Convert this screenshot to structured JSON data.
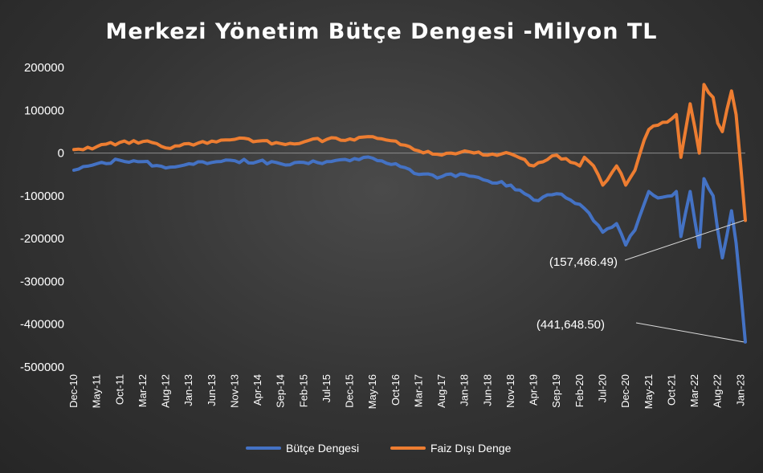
{
  "chart_data": {
    "type": "line",
    "title": "Merkezi Yönetim Bütçe Dengesi -Milyon TL",
    "xlabel": "",
    "ylabel": "",
    "ylim": [
      -500000,
      200000
    ],
    "yticks": [
      200000,
      100000,
      0,
      -100000,
      -200000,
      -300000,
      -400000,
      -500000
    ],
    "ytick_labels": [
      "200000",
      "100000",
      "0",
      "-100000",
      "-200000",
      "-300000",
      "-400000",
      "-500000"
    ],
    "x_start": "Dec-10",
    "x_end": "Feb-23",
    "xtick_labels": [
      "Dec-10",
      "May-11",
      "Oct-11",
      "Mar-12",
      "Aug-12",
      "Jan-13",
      "Jun-13",
      "Nov-13",
      "Apr-14",
      "Sep-14",
      "Feb-15",
      "Jul-15",
      "Dec-15",
      "May-16",
      "Oct-16",
      "Mar-17",
      "Aug-17",
      "Jan-18",
      "Jun-18",
      "Nov-18",
      "Apr-19",
      "Sep-19",
      "Feb-20",
      "Jul-20",
      "Dec-20",
      "May-21",
      "Oct-21",
      "Mar-22",
      "Aug-22",
      "Jan-23"
    ],
    "legend_position": "bottom",
    "grid": false,
    "series": [
      {
        "name": "Bütçe Dengesi",
        "color": "#4472c4",
        "keypoints": [
          [
            "Dec-10",
            -40000
          ],
          [
            "May-11",
            -25000
          ],
          [
            "Oct-11",
            -17000
          ],
          [
            "Mar-12",
            -20000
          ],
          [
            "Aug-12",
            -35000
          ],
          [
            "Jan-13",
            -25000
          ],
          [
            "Jun-13",
            -22000
          ],
          [
            "Nov-13",
            -18000
          ],
          [
            "Apr-14",
            -20000
          ],
          [
            "Sep-14",
            -25000
          ],
          [
            "Feb-15",
            -22000
          ],
          [
            "Jul-15",
            -20000
          ],
          [
            "Dec-15",
            -18000
          ],
          [
            "May-16",
            -12000
          ],
          [
            "Oct-16",
            -25000
          ],
          [
            "Mar-17",
            -50000
          ],
          [
            "Aug-17",
            -55000
          ],
          [
            "Jan-18",
            -50000
          ],
          [
            "Jun-18",
            -65000
          ],
          [
            "Nov-18",
            -75000
          ],
          [
            "Apr-19",
            -110000
          ],
          [
            "Sep-19",
            -95000
          ],
          [
            "Feb-20",
            -120000
          ],
          [
            "Apr-20",
            -140000
          ],
          [
            "Jul-20",
            -185000
          ],
          [
            "Oct-20",
            -165000
          ],
          [
            "Dec-20",
            -215000
          ],
          [
            "Feb-21",
            -180000
          ],
          [
            "May-21",
            -90000
          ],
          [
            "Jul-21",
            -105000
          ],
          [
            "Oct-21",
            -100000
          ],
          [
            "Nov-21",
            -90000
          ],
          [
            "Dec-21",
            -195000
          ],
          [
            "Feb-22",
            -90000
          ],
          [
            "Apr-22",
            -220000
          ],
          [
            "May-22",
            -60000
          ],
          [
            "Jul-22",
            -100000
          ],
          [
            "Aug-22",
            -180000
          ],
          [
            "Sep-22",
            -245000
          ],
          [
            "Nov-22",
            -135000
          ],
          [
            "Dec-22",
            -210000
          ],
          [
            "Feb-23",
            -441648.5
          ]
        ]
      },
      {
        "name": "Faiz Dışı Denge",
        "color": "#ed7d31",
        "keypoints": [
          [
            "Dec-10",
            8000
          ],
          [
            "May-11",
            15000
          ],
          [
            "Oct-11",
            25000
          ],
          [
            "Mar-12",
            27000
          ],
          [
            "Aug-12",
            12000
          ],
          [
            "Jan-13",
            22000
          ],
          [
            "Jun-13",
            28000
          ],
          [
            "Nov-13",
            32000
          ],
          [
            "Apr-14",
            28000
          ],
          [
            "Sep-14",
            22000
          ],
          [
            "Feb-15",
            26000
          ],
          [
            "Jul-15",
            32000
          ],
          [
            "Dec-15",
            33000
          ],
          [
            "May-16",
            38000
          ],
          [
            "Oct-16",
            28000
          ],
          [
            "Mar-17",
            5000
          ],
          [
            "Aug-17",
            -5000
          ],
          [
            "Jan-18",
            5000
          ],
          [
            "Jun-18",
            -5000
          ],
          [
            "Nov-18",
            -2000
          ],
          [
            "Apr-19",
            -30000
          ],
          [
            "Sep-19",
            -5000
          ],
          [
            "Feb-20",
            -30000
          ],
          [
            "Mar-20",
            -10000
          ],
          [
            "May-20",
            -30000
          ],
          [
            "Jul-20",
            -75000
          ],
          [
            "Oct-20",
            -30000
          ],
          [
            "Dec-20",
            -75000
          ],
          [
            "Feb-21",
            -40000
          ],
          [
            "Apr-21",
            30000
          ],
          [
            "May-21",
            55000
          ],
          [
            "Jul-21",
            65000
          ],
          [
            "Oct-21",
            80000
          ],
          [
            "Nov-21",
            90000
          ],
          [
            "Dec-21",
            -10000
          ],
          [
            "Feb-22",
            115000
          ],
          [
            "Apr-22",
            0
          ],
          [
            "May-22",
            160000
          ],
          [
            "Jul-22",
            130000
          ],
          [
            "Aug-22",
            70000
          ],
          [
            "Sep-22",
            50000
          ],
          [
            "Nov-22",
            145000
          ],
          [
            "Dec-22",
            90000
          ],
          [
            "Feb-23",
            -157466.49
          ]
        ]
      }
    ],
    "annotations": [
      {
        "text": "(157,466.49)",
        "target_x": "Feb-23",
        "target_y": -157466.49
      },
      {
        "text": "(441,648.50)",
        "target_x": "Feb-23",
        "target_y": -441648.5
      }
    ]
  }
}
